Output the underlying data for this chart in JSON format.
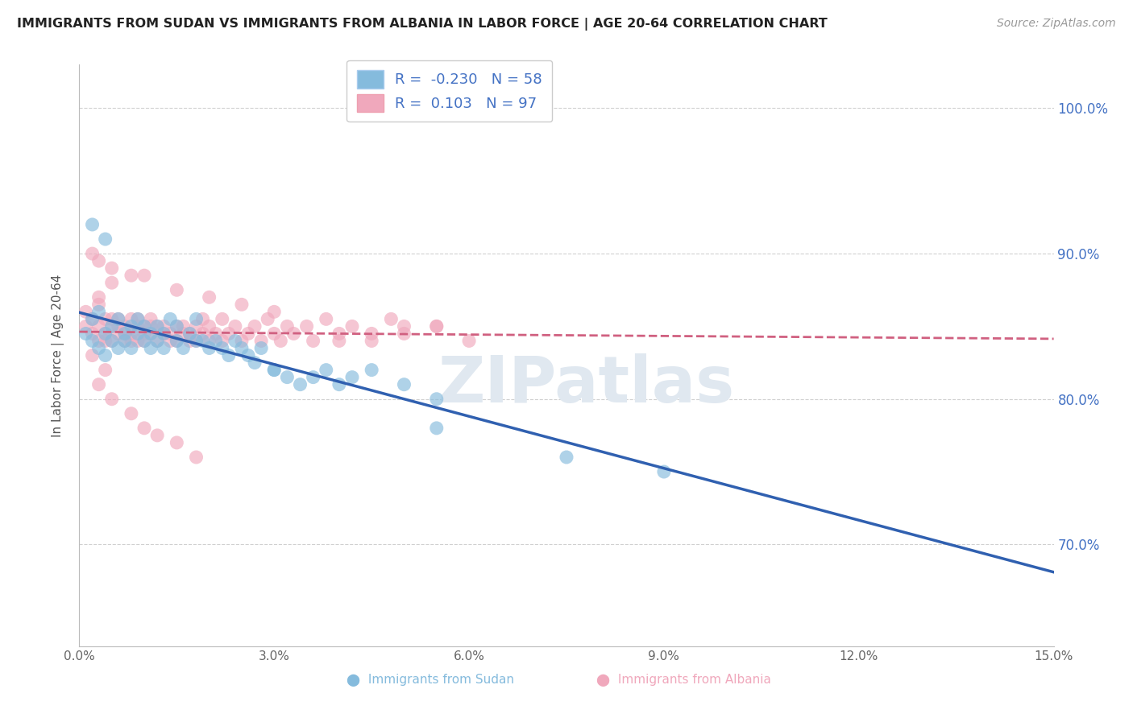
{
  "title": "IMMIGRANTS FROM SUDAN VS IMMIGRANTS FROM ALBANIA IN LABOR FORCE | AGE 20-64 CORRELATION CHART",
  "source": "Source: ZipAtlas.com",
  "ylabel": "In Labor Force | Age 20-64",
  "xlim": [
    0.0,
    0.15
  ],
  "ylim": [
    0.63,
    1.03
  ],
  "xticks": [
    0.0,
    0.03,
    0.06,
    0.09,
    0.12,
    0.15
  ],
  "xticklabels": [
    "0.0%",
    "3.0%",
    "6.0%",
    "9.0%",
    "12.0%",
    "15.0%"
  ],
  "yticks": [
    0.7,
    0.8,
    0.9,
    1.0
  ],
  "yticklabels": [
    "70.0%",
    "80.0%",
    "90.0%",
    "100.0%"
  ],
  "sudan_R": -0.23,
  "sudan_N": 58,
  "albania_R": 0.103,
  "albania_N": 97,
  "sudan_color": "#85bbdd",
  "albania_color": "#f0a8bc",
  "sudan_line_color": "#3060b0",
  "albania_line_color": "#d06080",
  "background_color": "#ffffff",
  "grid_color": "#d0d0d0",
  "sudan_x": [
    0.001,
    0.002,
    0.002,
    0.003,
    0.003,
    0.004,
    0.004,
    0.005,
    0.005,
    0.006,
    0.006,
    0.007,
    0.007,
    0.008,
    0.008,
    0.009,
    0.009,
    0.01,
    0.01,
    0.011,
    0.011,
    0.012,
    0.012,
    0.013,
    0.013,
    0.014,
    0.015,
    0.015,
    0.016,
    0.017,
    0.018,
    0.018,
    0.019,
    0.02,
    0.021,
    0.022,
    0.023,
    0.024,
    0.025,
    0.026,
    0.027,
    0.028,
    0.03,
    0.032,
    0.034,
    0.036,
    0.038,
    0.04,
    0.042,
    0.045,
    0.05,
    0.055,
    0.002,
    0.004,
    0.03,
    0.055,
    0.075,
    0.09
  ],
  "sudan_y": [
    0.845,
    0.84,
    0.855,
    0.835,
    0.86,
    0.845,
    0.83,
    0.85,
    0.84,
    0.855,
    0.835,
    0.845,
    0.84,
    0.85,
    0.835,
    0.845,
    0.855,
    0.84,
    0.85,
    0.835,
    0.845,
    0.84,
    0.85,
    0.835,
    0.845,
    0.855,
    0.84,
    0.85,
    0.835,
    0.845,
    0.84,
    0.855,
    0.84,
    0.835,
    0.84,
    0.835,
    0.83,
    0.84,
    0.835,
    0.83,
    0.825,
    0.835,
    0.82,
    0.815,
    0.81,
    0.815,
    0.82,
    0.81,
    0.815,
    0.82,
    0.81,
    0.8,
    0.92,
    0.91,
    0.82,
    0.78,
    0.76,
    0.75
  ],
  "albania_x": [
    0.001,
    0.001,
    0.002,
    0.002,
    0.003,
    0.003,
    0.003,
    0.004,
    0.004,
    0.004,
    0.005,
    0.005,
    0.005,
    0.006,
    0.006,
    0.006,
    0.007,
    0.007,
    0.007,
    0.008,
    0.008,
    0.008,
    0.009,
    0.009,
    0.009,
    0.01,
    0.01,
    0.01,
    0.011,
    0.011,
    0.011,
    0.012,
    0.012,
    0.013,
    0.013,
    0.014,
    0.014,
    0.015,
    0.015,
    0.016,
    0.016,
    0.017,
    0.017,
    0.018,
    0.018,
    0.019,
    0.019,
    0.02,
    0.02,
    0.021,
    0.022,
    0.022,
    0.023,
    0.024,
    0.025,
    0.026,
    0.027,
    0.028,
    0.029,
    0.03,
    0.031,
    0.032,
    0.033,
    0.035,
    0.036,
    0.038,
    0.04,
    0.042,
    0.045,
    0.048,
    0.05,
    0.055,
    0.002,
    0.003,
    0.005,
    0.008,
    0.01,
    0.015,
    0.02,
    0.025,
    0.03,
    0.002,
    0.004,
    0.003,
    0.005,
    0.008,
    0.01,
    0.012,
    0.015,
    0.018,
    0.003,
    0.005,
    0.04,
    0.045,
    0.05,
    0.055,
    0.06
  ],
  "albania_y": [
    0.85,
    0.86,
    0.845,
    0.855,
    0.84,
    0.85,
    0.865,
    0.845,
    0.855,
    0.84,
    0.85,
    0.855,
    0.84,
    0.845,
    0.85,
    0.855,
    0.84,
    0.845,
    0.85,
    0.855,
    0.84,
    0.845,
    0.85,
    0.84,
    0.855,
    0.845,
    0.85,
    0.84,
    0.845,
    0.85,
    0.855,
    0.84,
    0.85,
    0.845,
    0.85,
    0.84,
    0.845,
    0.85,
    0.84,
    0.845,
    0.85,
    0.84,
    0.845,
    0.85,
    0.84,
    0.845,
    0.855,
    0.84,
    0.85,
    0.845,
    0.84,
    0.855,
    0.845,
    0.85,
    0.84,
    0.845,
    0.85,
    0.84,
    0.855,
    0.845,
    0.84,
    0.85,
    0.845,
    0.85,
    0.84,
    0.855,
    0.845,
    0.85,
    0.84,
    0.855,
    0.845,
    0.85,
    0.9,
    0.895,
    0.89,
    0.885,
    0.885,
    0.875,
    0.87,
    0.865,
    0.86,
    0.83,
    0.82,
    0.81,
    0.8,
    0.79,
    0.78,
    0.775,
    0.77,
    0.76,
    0.87,
    0.88,
    0.84,
    0.845,
    0.85,
    0.85,
    0.84
  ],
  "watermark_text": "ZIPatlas",
  "watermark_color": "#e0e8f0"
}
